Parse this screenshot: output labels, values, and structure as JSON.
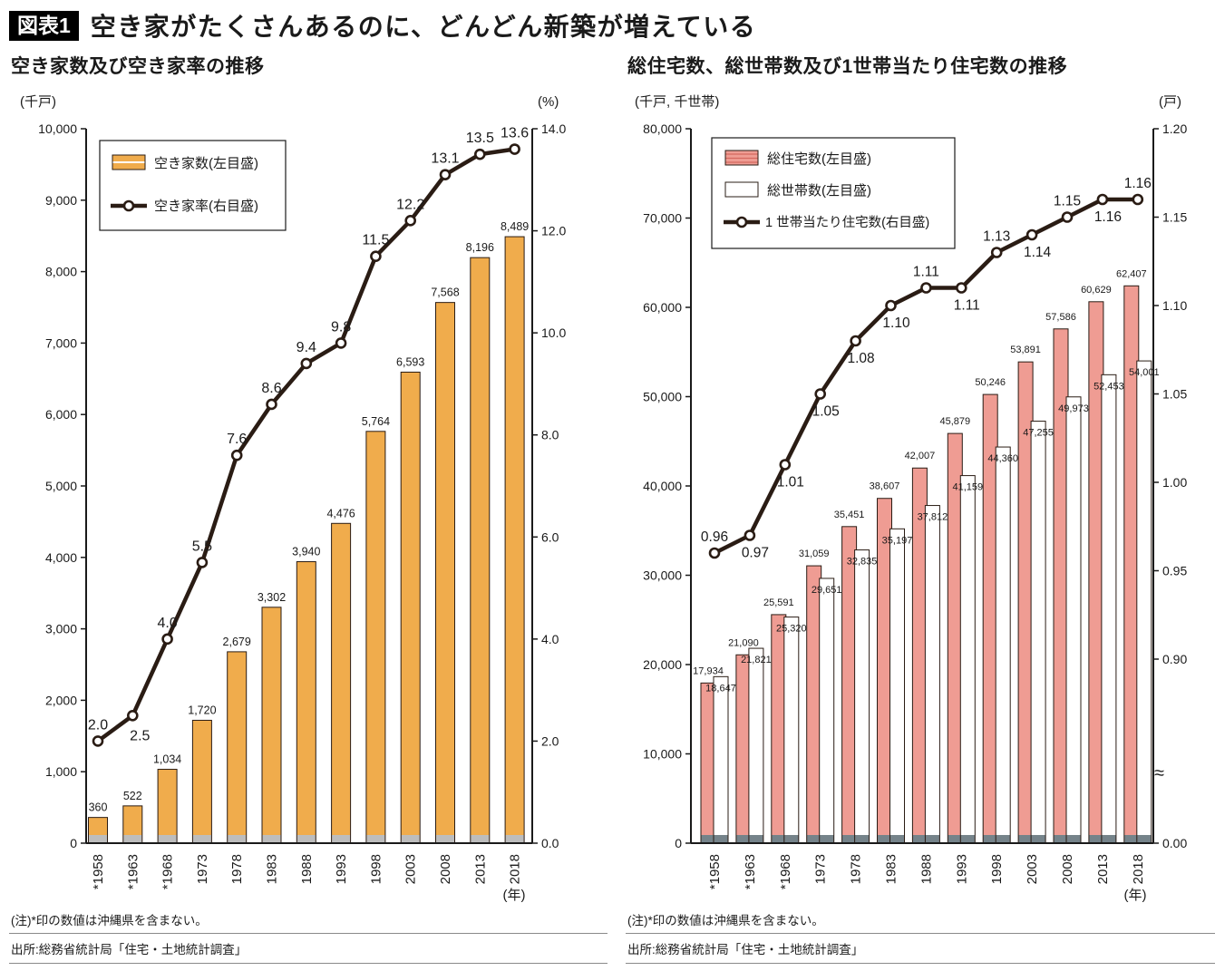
{
  "header": {
    "badge": "図表1",
    "title": "空き家がたくさんあるのに、どんどん新築が増えている"
  },
  "colors": {
    "bar_orange": "#f0ac4c",
    "bar_pink": "#ef9c93",
    "bar_white": "#ffffff",
    "line": "#2a1c14",
    "base_gray_left": "#bdbdbd",
    "base_gray_right": "#75838a",
    "pink_stripe": "#d4685f",
    "text": "#1a1a1a"
  },
  "chart_data": [
    {
      "type": "bar",
      "title": "空き家数及び空き家率の推移",
      "unit_left": "(千戸)",
      "unit_right": "(%)",
      "x_unit": "(年)",
      "categories": [
        "*1958",
        "*1963",
        "*1968",
        "1973",
        "1978",
        "1983",
        "1988",
        "1993",
        "1998",
        "2003",
        "2008",
        "2013",
        "2018"
      ],
      "series": [
        {
          "name": "空き家数(左目盛)",
          "type": "bar",
          "axis": "left",
          "values": [
            360,
            522,
            1034,
            1720,
            2679,
            3302,
            3940,
            4476,
            5764,
            6593,
            7568,
            8196,
            8489
          ]
        },
        {
          "name": "空き家率(右目盛)",
          "type": "line",
          "axis": "right",
          "values": [
            2.0,
            2.5,
            4.0,
            5.5,
            7.6,
            8.6,
            9.4,
            9.8,
            11.5,
            12.2,
            13.1,
            13.5,
            13.6
          ]
        }
      ],
      "ylim_left": [
        0,
        10000
      ],
      "ytick_left_step": 1000,
      "ylim_right": [
        0,
        14.0
      ],
      "ytick_right_step": 2.0,
      "grid": "off",
      "legend_position": "top-left-inside",
      "note": "(注)*印の数値は沖縄県を含まない。",
      "source": "出所:総務省統計局「住宅・土地統計調査」"
    },
    {
      "type": "bar",
      "title": "総住宅数、総世帯数及び1世帯当たり住宅数の推移",
      "unit_left": "(千戸, 千世帯)",
      "unit_right": "(戸)",
      "x_unit": "(年)",
      "categories": [
        "*1958",
        "*1963",
        "*1968",
        "1973",
        "1978",
        "1983",
        "1988",
        "1993",
        "1998",
        "2003",
        "2008",
        "2013",
        "2018"
      ],
      "series": [
        {
          "name": "総住宅数(左目盛)",
          "type": "bar",
          "axis": "left",
          "values": [
            17934,
            21090,
            25591,
            31059,
            35451,
            38607,
            42007,
            45879,
            50246,
            53891,
            57586,
            60629,
            62407
          ]
        },
        {
          "name": "総世帯数(左目盛)",
          "type": "bar",
          "axis": "left",
          "values": [
            18647,
            21821,
            25320,
            29651,
            32835,
            35197,
            37812,
            41159,
            44360,
            47255,
            49973,
            52453,
            54001
          ]
        },
        {
          "name": "1 世帯当たり住宅数(右目盛)",
          "type": "line",
          "axis": "right",
          "values": [
            0.96,
            0.97,
            1.01,
            1.05,
            1.08,
            1.1,
            1.11,
            1.11,
            1.13,
            1.14,
            1.15,
            1.16,
            1.16
          ]
        }
      ],
      "ylim_left": [
        0,
        80000
      ],
      "ytick_left_step": 10000,
      "ylim_right": [
        0.9,
        1.2
      ],
      "ytick_right_step": 0.05,
      "right_axis_zero_label": "0.00",
      "right_axis_break": "≈",
      "grid": "off",
      "legend_position": "top-left-inside",
      "note": "(注)*印の数値は沖縄県を含まない。",
      "source": "出所:総務省統計局「住宅・土地統計調査」"
    }
  ]
}
